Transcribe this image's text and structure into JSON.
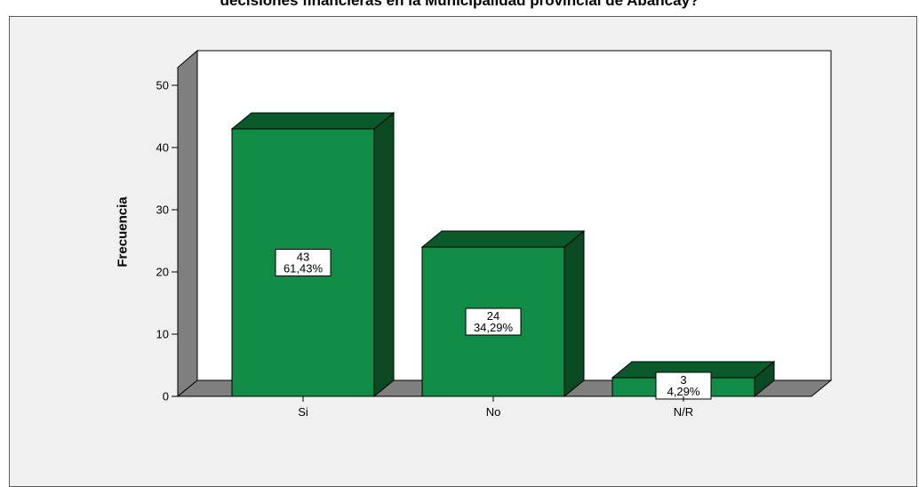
{
  "title": "decisiones financieras en la Municipalidad provincial de Abancay?",
  "colors": {
    "frame_bg": "#f0f0f0",
    "plot_bg": "#ffffff",
    "wall_side": "#7f7f7f",
    "floor": "#7f7f7f",
    "bar_front": "#0f8c45",
    "bar_top": "#0b5a2b",
    "bar_side": "#0a4a23",
    "outline": "#000000"
  },
  "chart_data": {
    "type": "bar",
    "title": "decisiones financieras en la Municipalidad provincial de Abancay?",
    "xlabel": "",
    "ylabel": "Frecuencia",
    "categories": [
      "Si",
      "No",
      "N/R"
    ],
    "values": [
      43,
      24,
      3
    ],
    "data_labels": [
      {
        "count": "43",
        "percent": "61,43%"
      },
      {
        "count": "24",
        "percent": "34,29%"
      },
      {
        "count": "3",
        "percent": "4,29%"
      }
    ],
    "ylim": [
      0,
      50
    ],
    "yticks": [
      0,
      10,
      20,
      30,
      40,
      50
    ],
    "grid": false,
    "legend": "none",
    "style": "3d"
  }
}
